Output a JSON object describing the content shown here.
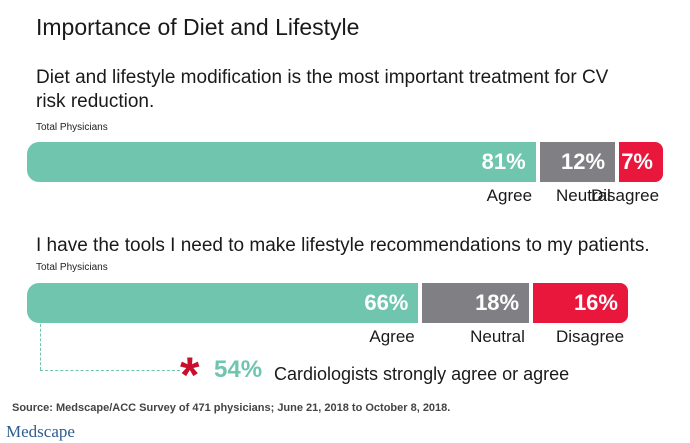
{
  "header": {
    "title": "Importance of Diet and Lifestyle"
  },
  "colors": {
    "agree": "#6fc5ae",
    "neutral": "#808084",
    "disagree": "#e8173b",
    "star": "#c8102e",
    "logo": "#2d5d8f"
  },
  "chart_data": [
    {
      "type": "bar",
      "stacked": true,
      "orientation": "horizontal",
      "title": "Diet and lifestyle modification is the most important treatment for CV risk reduction.",
      "subtitle": "Total Physicians",
      "categories": [
        "Agree",
        "Neutral",
        "Disagree"
      ],
      "values": [
        81,
        12,
        7
      ],
      "labels": [
        "81%",
        "12%",
        "7%"
      ]
    },
    {
      "type": "bar",
      "stacked": true,
      "orientation": "horizontal",
      "title": "I have the tools I need to make lifestyle recommendations to my patients.",
      "subtitle": "Total Physicians",
      "categories": [
        "Agree",
        "Neutral",
        "Disagree"
      ],
      "values": [
        66,
        18,
        16
      ],
      "labels": [
        "66%",
        "18%",
        "16%"
      ],
      "annotation": {
        "symbol": "*",
        "value": "54%",
        "text": "Cardiologists strongly agree or agree"
      }
    }
  ],
  "footer": {
    "source": "Source: Medscape/ACC Survey of 471 physicians; June 21, 2018 to October 8, 2018.",
    "logo": "Medscape"
  }
}
